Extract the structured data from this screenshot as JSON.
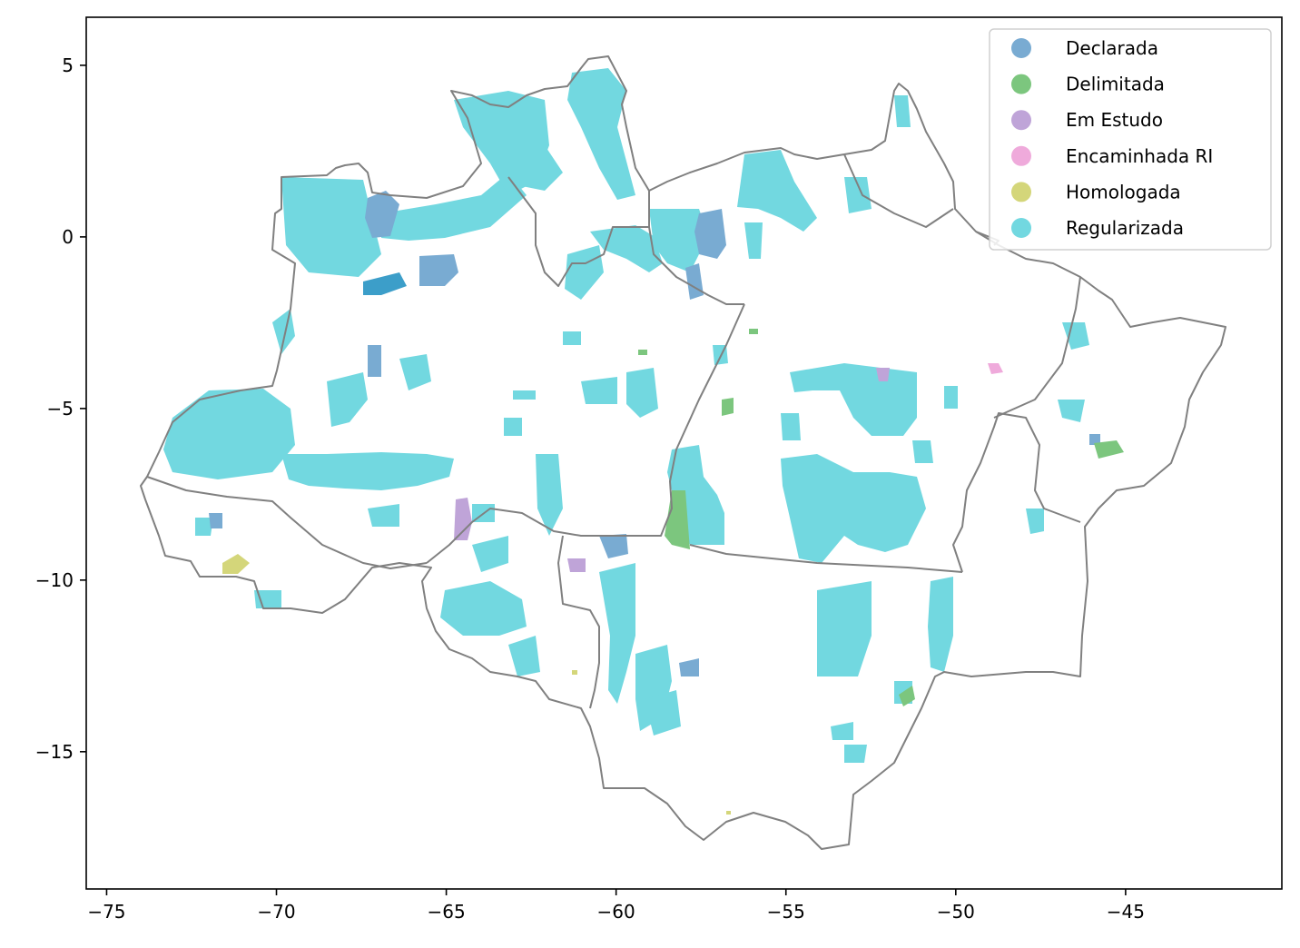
{
  "chart_data": {
    "type": "map",
    "xlim": [
      -75.6,
      -40.4
    ],
    "ylim": [
      -19.0,
      6.4
    ],
    "x_ticks": [
      {
        "value": -75,
        "label": "−75"
      },
      {
        "value": -70,
        "label": "−70"
      },
      {
        "value": -65,
        "label": "−65"
      },
      {
        "value": -60,
        "label": "−60"
      },
      {
        "value": -55,
        "label": "−55"
      },
      {
        "value": -50,
        "label": "−50"
      },
      {
        "value": -45,
        "label": "−45"
      }
    ],
    "y_ticks": [
      {
        "value": 5,
        "label": "5"
      },
      {
        "value": 0,
        "label": "0"
      },
      {
        "value": -5,
        "label": "−5"
      },
      {
        "value": -10,
        "label": "−10"
      },
      {
        "value": -15,
        "label": "−15"
      }
    ],
    "legend_position": "top-right",
    "legend": [
      {
        "label": "Declarada",
        "color": "#79abd2"
      },
      {
        "label": "Delimitada",
        "color": "#7cc67e"
      },
      {
        "label": "Em Estudo",
        "color": "#bfa4d8"
      },
      {
        "label": "Encaminhada RI",
        "color": "#efaadb"
      },
      {
        "label": "Homologada",
        "color": "#d4d67a"
      },
      {
        "label": "Regularizada",
        "color": "#72d8e0"
      }
    ],
    "grid": false
  }
}
